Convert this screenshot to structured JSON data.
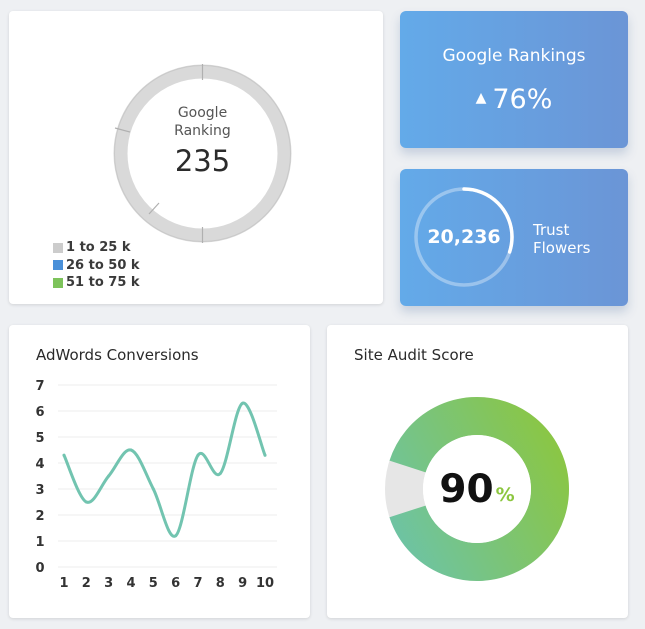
{
  "ranking_card": {
    "title_line1": "Google",
    "title_line2": "Ranking",
    "value": "235",
    "legend": [
      {
        "label": "1 to 25 k",
        "color": "#cccccc"
      },
      {
        "label": "26 to 50 k",
        "color": "#4a90d9"
      },
      {
        "label": "51 to 75 k",
        "color": "#7dc35b"
      }
    ]
  },
  "rankings_kpi": {
    "title": "Google Rankings",
    "arrow_icon": "triangle-up-icon",
    "value": "76%"
  },
  "trust_card": {
    "value": "20,236",
    "label_line1": "Trust",
    "label_line2": "Flowers",
    "progress": 0.3
  },
  "adwords_card": {
    "title": "AdWords Conversions"
  },
  "audit_card": {
    "title": "Site Audit Score",
    "value": "90",
    "unit": "%",
    "score": 0.9
  },
  "chart_data": {
    "type": "line",
    "x": [
      1,
      2,
      3,
      4,
      5,
      6,
      7,
      8,
      9,
      10
    ],
    "y": [
      4.3,
      2.5,
      3.5,
      4.5,
      3.0,
      1.2,
      4.3,
      3.6,
      6.3,
      4.3
    ],
    "xticks": [
      "1",
      "2",
      "3",
      "4",
      "5",
      "6",
      "7",
      "8",
      "9",
      "10"
    ],
    "yticks": [
      "0",
      "1",
      "2",
      "3",
      "4",
      "5",
      "6",
      "7"
    ],
    "ylim": [
      0,
      7
    ],
    "grid": true,
    "line_color": "#72c4b0"
  }
}
